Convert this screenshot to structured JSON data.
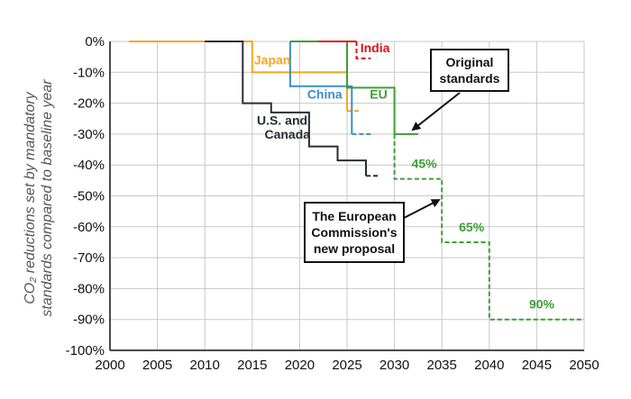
{
  "chart_data": {
    "type": "line",
    "ylabel_line1": "CO₂ reductions set by mandatory",
    "ylabel_line2": "standards compared to baseline year",
    "xlim": [
      2000,
      2050
    ],
    "ylim": [
      -100,
      0
    ],
    "xticks": [
      "2000",
      "2005",
      "2010",
      "2015",
      "2020",
      "2025",
      "2030",
      "2035",
      "2040",
      "2045",
      "2050"
    ],
    "yticks": [
      "0%",
      "-10%",
      "-20%",
      "-30%",
      "-40%",
      "-50%",
      "-60%",
      "-70%",
      "-80%",
      "-90%",
      "-100%"
    ],
    "grid": true,
    "series": [
      {
        "name": "Japan",
        "color": "#f5a623",
        "solid": [
          [
            2002,
            0
          ],
          [
            2015,
            0
          ],
          [
            2015,
            -10
          ],
          [
            2025,
            -10
          ],
          [
            2025,
            -22.5
          ]
        ],
        "dashed": [
          [
            2025,
            -22.5
          ],
          [
            2026.5,
            -22.5
          ]
        ]
      },
      {
        "name": "China",
        "color": "#3a8fc8",
        "solid": [
          [
            2019,
            0
          ],
          [
            2019,
            -14.5
          ],
          [
            2025.5,
            -14.5
          ],
          [
            2025.5,
            -30
          ]
        ],
        "dashed": [
          [
            2025.5,
            -30
          ],
          [
            2027.5,
            -30
          ]
        ]
      },
      {
        "name": "EU",
        "color": "#3d9e35",
        "solid": [
          [
            2019,
            0
          ],
          [
            2025,
            0
          ],
          [
            2025,
            -15
          ],
          [
            2030,
            -15
          ],
          [
            2030,
            -30
          ],
          [
            2032.5,
            -30
          ]
        ],
        "dashed": [
          [
            2030,
            -30
          ],
          [
            2030,
            -44.5
          ],
          [
            2035,
            -44.5
          ],
          [
            2035,
            -65
          ],
          [
            2040,
            -65
          ],
          [
            2040,
            -90
          ],
          [
            2050,
            -90
          ]
        ]
      },
      {
        "name": "India",
        "color": "#e01010",
        "solid": [
          [
            2022,
            0
          ],
          [
            2026,
            0
          ]
        ],
        "dashed": [
          [
            2026,
            0
          ],
          [
            2026,
            -5.5
          ],
          [
            2027.5,
            -5.5
          ]
        ]
      },
      {
        "name": "U.S. and Canada",
        "color": "#2a2e33",
        "solid": [
          [
            2010,
            0
          ],
          [
            2014,
            0
          ],
          [
            2014,
            -20
          ],
          [
            2017,
            -20
          ],
          [
            2017,
            -23
          ],
          [
            2021,
            -23
          ],
          [
            2021,
            -34
          ],
          [
            2024,
            -34
          ],
          [
            2024,
            -38.5
          ],
          [
            2027,
            -38.5
          ],
          [
            2027,
            -43.5
          ]
        ],
        "dashed": [
          [
            2027,
            -43.5
          ],
          [
            2028.5,
            -43.5
          ]
        ]
      }
    ],
    "labels": [
      {
        "text": "Japan",
        "color": "#f5a623",
        "x": 2015.2,
        "y": -7.5
      },
      {
        "text": "China",
        "color": "#3a8fc8",
        "x": 2020.8,
        "y": -18.5
      },
      {
        "text": "EU",
        "color": "#3d9e35",
        "x": 2027.4,
        "y": -18.5
      },
      {
        "text": "India",
        "color": "#e01010",
        "x": 2026.4,
        "y": -3.5
      },
      {
        "text": "U.S. and",
        "color": "#2a2e33",
        "x": 2015.5,
        "y": -27
      },
      {
        "text": "Canada",
        "color": "#2a2e33",
        "x": 2016.3,
        "y": -31.5
      },
      {
        "text": "45%",
        "color": "#3d9e35",
        "x": 2031.8,
        "y": -41
      },
      {
        "text": "65%",
        "color": "#3d9e35",
        "x": 2036.8,
        "y": -61.5
      },
      {
        "text": "90%",
        "color": "#3d9e35",
        "x": 2044.2,
        "y": -86.5
      }
    ],
    "annotations": {
      "original": [
        "Original",
        "standards"
      ],
      "proposal": [
        "The European",
        "Commission's",
        "new proposal"
      ]
    }
  }
}
